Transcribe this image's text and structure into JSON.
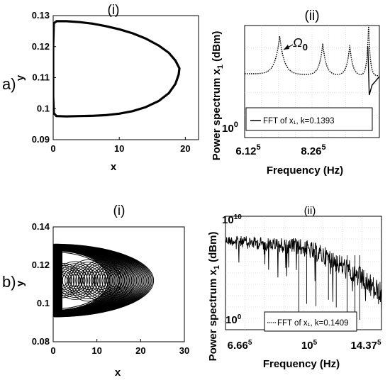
{
  "chart_data": [
    {
      "type": "line",
      "panel": "a-i",
      "title": "(i)",
      "row_label": "a)",
      "xlabel": "x",
      "ylabel": "y",
      "xlim": [
        0,
        22
      ],
      "ylim": [
        0.09,
        0.13
      ],
      "xticks": [
        0,
        10,
        20
      ],
      "yticks": [
        0.09,
        0.1,
        0.11,
        0.12,
        0.13
      ],
      "xtick_labels": [
        "0",
        "10",
        "20"
      ],
      "ytick_labels": [
        "0.09",
        "0.1",
        "0.11",
        "0.12",
        "0.13"
      ],
      "series": [
        {
          "x": [
            0.1,
            0.5,
            2,
            4,
            6,
            8,
            10,
            12,
            14,
            16,
            17.5,
            18.5,
            19.1,
            19.0,
            18.5,
            17.5,
            16,
            14,
            12,
            10,
            8,
            6,
            4,
            2,
            0.5,
            0.1,
            0.0,
            0.0,
            0.1
          ],
          "y": [
            0.1275,
            0.1282,
            0.1282,
            0.1279,
            0.1274,
            0.1266,
            0.1256,
            0.1243,
            0.1226,
            0.1203,
            0.118,
            0.1155,
            0.113,
            0.111,
            0.108,
            0.105,
            0.1025,
            0.1005,
            0.0992,
            0.0984,
            0.0979,
            0.0977,
            0.0976,
            0.0975,
            0.0976,
            0.0985,
            0.104,
            0.12,
            0.1275
          ]
        }
      ],
      "grid": false,
      "line_color": "#000000"
    },
    {
      "type": "line",
      "panel": "a-ii",
      "title": "(ii)",
      "xlabel": "Frequency (Hz)",
      "ylabel": "Power spectrum x₁ (dBm)",
      "yscale": "log",
      "xtick_labels": [
        "6.12⁵",
        "8.26⁵"
      ],
      "ytick_labels": [
        "10⁰"
      ],
      "annotation": "Ω₀",
      "legend": {
        "label": "FFT of x₁, k=0.1393",
        "placement": "bottom"
      },
      "peaks": [
        {
          "x": 0.26,
          "height": 0.34,
          "width": 0.22
        },
        {
          "x": 0.58,
          "height": 0.28,
          "width": 0.16
        },
        {
          "x": 0.78,
          "height": 0.27,
          "width": 0.14
        },
        {
          "x": 0.92,
          "height": 0.45,
          "width": 0.08
        }
      ],
      "grid": true,
      "line_color": "#000000"
    },
    {
      "type": "line",
      "panel": "b-i",
      "title": "(i)",
      "row_label": "b)",
      "xlabel": "x",
      "ylabel": "y",
      "xlim": [
        0,
        30
      ],
      "ylim": [
        0.08,
        0.14
      ],
      "xticks": [
        0,
        10,
        20,
        30
      ],
      "yticks": [
        0.08,
        0.1,
        0.12,
        0.14
      ],
      "xtick_labels": [
        "0",
        "10",
        "20",
        "30"
      ],
      "ytick_labels": [
        "0.08",
        "0.1",
        "0.12",
        "0.14"
      ],
      "orbit_extent": {
        "x_max": 23,
        "y_min": 0.093,
        "y_max": 0.131
      },
      "grid": false,
      "line_color": "#000000"
    },
    {
      "type": "scatter",
      "panel": "b-ii",
      "title": "(ii)",
      "xlabel": "Frequency (Hz)",
      "ylabel": "Power spectrum x₁ (dBm)",
      "yscale": "log",
      "ylim": [
        1,
        10000000000
      ],
      "xtick_labels": [
        "6.66⁵",
        "10⁵",
        "14.37⁵"
      ],
      "ytick_labels": [
        "10¹⁰",
        "10⁰"
      ],
      "legend": {
        "label": "FFT of x₁, k=0.1409",
        "placement": "bottom"
      },
      "grid": true,
      "line_color": "#000000"
    }
  ]
}
